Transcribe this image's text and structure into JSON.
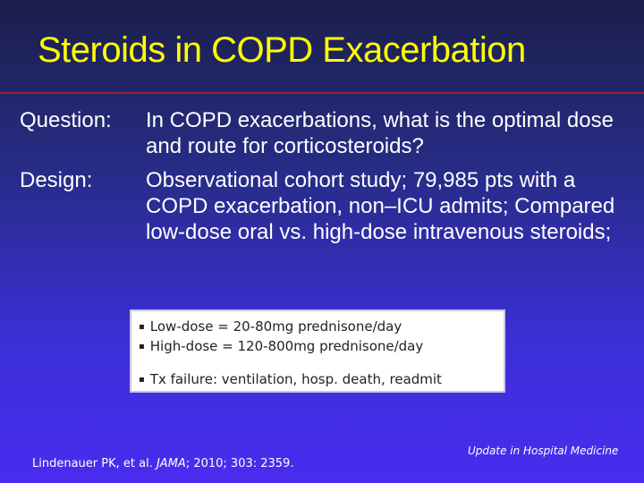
{
  "slide": {
    "title": "Steroids in COPD Exacerbation",
    "question_label": "Question:",
    "question_text": "In COPD exacerbations, what is the optimal dose and route for corticosteroids?",
    "design_label": "Design:",
    "design_text": "Observational cohort study; 79,985 pts with a COPD exacerbation, non–ICU admits; Compared low-dose oral vs. high-dose intravenous steroids;",
    "box_items": [
      "Low-dose = 20-80mg prednisone/day",
      "High-dose = 120-800mg prednisone/day",
      "Tx failure: ventilation, hosp. death, readmit"
    ],
    "bullet_glyph": "▪",
    "citation_authors": "Lindenauer PK, et al. ",
    "citation_journal": "JAMA",
    "citation_rest": "; 2010; 303: 2359.",
    "footer": "Update in Hospital Medicine"
  },
  "colors": {
    "title": "#ffff00",
    "rule": "#9b2430",
    "text": "#ffffff",
    "box_bg": "#ffffff"
  }
}
